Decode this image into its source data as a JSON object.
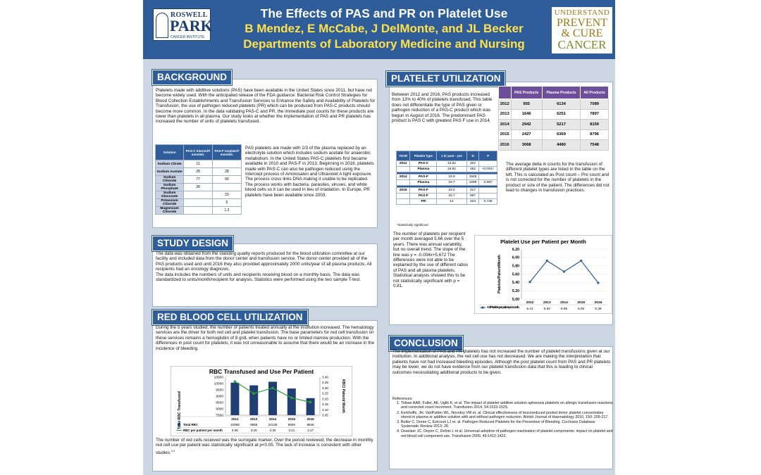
{
  "header": {
    "title": "The Effects of PAS and PR on Platelet Use",
    "authors": "B Mendez, E McCabe, J DelMonte, and JL Becker",
    "department": "Departments of Laboratory Medicine and Nursing",
    "logo_left": {
      "line1": "ROSWELL",
      "line2": "PARK",
      "line3": "CANCER INSTITUTE"
    },
    "logo_right": {
      "line1": "UNDERSTAND",
      "line2": "PREVENT",
      "line3": "& CURE",
      "line4": "CANCER"
    }
  },
  "background": {
    "heading": "BACKGROUND",
    "intro": "Platelets made with additive solutions (PAS) have been available in the United States since 2011, but have not become widely used.  With the anticipated release of the FDA guidance: Bacterial Risk Control Strategies for Blood Collection Establishments and Transfusion Services to Enhance the Safety and Availability of Platelets for Transfusion, the use of pathogen reduced platelets (PR) which can be produced from PAS-C products should become more common.  In the data validating PAS-C and PR, the immediate post counts for these products are lower than platelets in all plasma.  Our study looks at whether the implementation of PAS and PR platelets has increased the number of units of platelets transfused.",
    "side_text": "PAS platelets are made with 2/3 of the plasma replaced by an electrolyte solution which includes sodium acetate for anaerobic metabolism. In the United States PAS-C platelets first became available in 2010 and PAS-F in 2013.  Beginning in 2016, platelets made with PAS-C can also be pathogen reduced using the Intercept process of Amotosalen and Ultraviolet A light exposure.  The process cross links DNA making it unable to be replicated.  The process works with bacteria, parasites, viruses, and white blood cells so it can be used in lieu of  irradiation. In Europe, PR platelets have been available since 2003.",
    "solution_table": {
      "headers": [
        "Solution",
        "PAS-C Intersol® mmole/L",
        "PAS-F Isoplate® mmole/L"
      ],
      "rows": [
        [
          "Sodium Citrate",
          "11",
          ""
        ],
        [
          "Sodium Acetate",
          "28",
          "28"
        ],
        [
          "Sodium Chloride",
          "77",
          "90"
        ],
        [
          "Sodium Phosphate",
          "28",
          ""
        ],
        [
          "Sodium Gluconate",
          "",
          "23"
        ],
        [
          "Potassium Chloride",
          "",
          "5"
        ],
        [
          "Magnesium Chloride",
          "",
          "1.2"
        ]
      ]
    }
  },
  "study_design": {
    "heading": "STUDY DESIGN",
    "text": "The data was obtained from the standing quality reports produced for the blood utilization committee at our facility and included data from the donor center and transfusion service.  The donor center provided all of the PAS products used and until 2016 they also provided approximately 2000 units/year of all plasma products.  All recipients had an oncology diagnosis.\nThe data includes the numbers of units and recipients receiving blood on a monthly basis.  The data was standardized to units/month/recipient for analysis. Statistics were performed using the two sample T-test."
  },
  "rbc": {
    "heading": "RED BLOOD CELL UTILIZATION",
    "text": "During the 5 years studied, the number of patients treated annually at the institution increased.  The hematology services are the driver for both red cell and platelet transfusion.  The base parameters for red cell transfusion on these services remains a hemoglobin of 8 g/dL when patients have no or limited marrow production. With the differences in post count for platelets, it  was not unreasonable to assume that there would be an increase in the incidence of bleeding.",
    "footer": "The number of red cells received was the surrogate marker. Over the period reviewed, the decrease in monthly red cell use per patient was statistically significant at p<0.05.  The lack of increase is consistent with other studies.",
    "footer_sup": "3,4"
  },
  "platelet": {
    "heading": "PLATELET UTILIZATION",
    "text1": "Between 2012 and 2016, PAS products increased from 13% to 40% of platelets transfused.  This table does not differentiate the type of  PAS given or pathogen reduction of a PAS-C product which was begun in August of 2016.  The predominant PAS product is PAS C with greatest PAS F use in 2014.",
    "products_table": {
      "headers": [
        "",
        "PAS Products",
        "Plasma Products",
        "All Products"
      ],
      "rows": [
        [
          "2012",
          "955",
          "6134",
          "7089"
        ],
        [
          "2013",
          "1646",
          "6251",
          "7897"
        ],
        [
          "2014",
          "2942",
          "5217",
          "8159"
        ],
        [
          "2015",
          "2427",
          "6369",
          "8796"
        ],
        [
          "2016",
          "3068",
          "4480",
          "7548"
        ]
      ]
    },
    "delta_text": "The average delta in counts for the transfusion of different platelet types are listed in the table on the left.  This is calculated as Post count – Pre count and is not corrected for the number of platelets in the product or size of the patient. The differences did not lead to changes in transfusion practices.",
    "type_table": {
      "headers": [
        "YEAR",
        "Platelet Type",
        "1 hr post – pre",
        "N",
        "P"
      ],
      "groups": [
        [
          [
            "2012",
            "PAS-C",
            "13.62",
            "202",
            ""
          ],
          [
            "",
            "Plasma",
            "19.92",
            "452",
            "<0.001*"
          ]
        ],
        [
          [
            "2014",
            "PAS-F",
            "19.9",
            "1545",
            ""
          ],
          [
            "",
            "Plasma",
            "19.7",
            "1099",
            "0.087"
          ]
        ],
        [
          [
            "2016",
            "PAS-F",
            "19.4",
            "317",
            ""
          ],
          [
            "",
            "PAS-F",
            "15.7",
            "997",
            ""
          ],
          [
            "",
            "PR",
            "14",
            "323",
            "0.746"
          ]
        ]
      ],
      "note": "*statistically significant"
    },
    "trend_text": "The number of platelets per recipient per month averaged 5.66 over the 5 years. There was annual variability, but no overall trend.  The slope of the line was y = -0.004x+5.672  The differences were not able to be explained by the use of different ratios of PAS and all plasma platelets.  Statistical analysis showed this to be not statistically significant with p = 0.81."
  },
  "conclusion": {
    "heading": "CONCLUSION",
    "text": "The implementation of PAS and PR platelets has not increased the number of platelet transfusions given at our institution.  In additional analysis, the red cell use has not decreased.  We are making the interpretation that patients have not had increased bleeding episodes.  Although the post platelet count from PAS and PR platelets may be lower, we do not have evidence from our platelet transfusion data that this is leading to clinical outcomes necessitating additional products to be given.",
    "refs_label": "References:",
    "refs": [
      "Tobian AAR, Fuller, AK, Uglik K, et al. The impact of platelet additive solution apheresis platelets on allergic transfusion reactions and corrected count increment.  Transfusion 2014, 54:1523-1529.",
      "Kerkhoffs, JH, VanPutten WL, Novotny VM et. al. Clinical effectiveness of leucoreduced pooled donor platelet concentrates stored in plasma or additive solution with and without pathogen reduction. British Journal of Haematology 2010, 150: 209-217.",
      "Butler C, Doree C, Estcourt LJ et. al. Pathogen Reduced Platelets for the Prevention of Bleeding.  Cochrane Database Systematic Review 2013; 28.",
      "Osselaer JC, Doyen C, Defoin L et al. Universal adoption of pathogen inactivation of platelet components: impact on platelet and red blood cell component use. Transfusion 2009, 49:1412-1422."
    ]
  },
  "chart_data": [
    {
      "type": "bar",
      "title": "RBC Transfused and Use Per Patient",
      "categories": [
        "2012",
        "2013",
        "2014",
        "2015",
        "2016"
      ],
      "series": [
        {
          "name": "Total RBC",
          "type": "bar",
          "values": [
            10068,
            9855,
            10138,
            9606,
            8846
          ],
          "axis": "left"
        },
        {
          "name": "RBC per patient per month",
          "type": "line",
          "values": [
            3.36,
            3.25,
            3.3,
            3.21,
            3.17
          ],
          "axis": "right"
        }
      ],
      "ylabel": "Total RBC Transfused",
      "ylabel_right": "RBC/ Patient/ Month",
      "ylim": [
        7500,
        10500
      ],
      "yticks": [
        "7500",
        "8000",
        "8500",
        "9000",
        "9500",
        "10000",
        "10500"
      ],
      "ylim_right": [
        3.05,
        3.4
      ],
      "yticks_right": [
        "3.05",
        "3.10",
        "3.15",
        "3.20",
        "3.25",
        "3.30",
        "3.35",
        "3.40"
      ],
      "table_rows": [
        {
          "label": "Total RBC",
          "values": [
            "10068",
            "9855",
            "10138",
            "9606",
            "8846"
          ]
        },
        {
          "label": "RBC per patient per month",
          "values": [
            "3.36",
            "3.25",
            "3.30",
            "3.21",
            "3.17"
          ]
        }
      ],
      "bar_color": "#1f3f73",
      "line_color": "#2aa43a"
    },
    {
      "type": "line",
      "title": "Platelet Use per Patient per Month",
      "categories": [
        "2012",
        "2013",
        "2014",
        "2015",
        "2016"
      ],
      "series": [
        {
          "name": "# of Platelets per patient per month",
          "values": [
            5.41,
            5.92,
            5.66,
            5.92,
            5.39
          ]
        }
      ],
      "ylabel": "Platelets/Patient/Month",
      "ylim": [
        5.0,
        6.2
      ],
      "yticks": [
        "5.00",
        "5.20",
        "5.40",
        "5.60",
        "5.80",
        "6.00",
        "6.20"
      ],
      "table_values": [
        "5.41",
        "5.92",
        "5.66",
        "5.92",
        "5.39"
      ],
      "line_color": "#2e5d9a"
    }
  ]
}
